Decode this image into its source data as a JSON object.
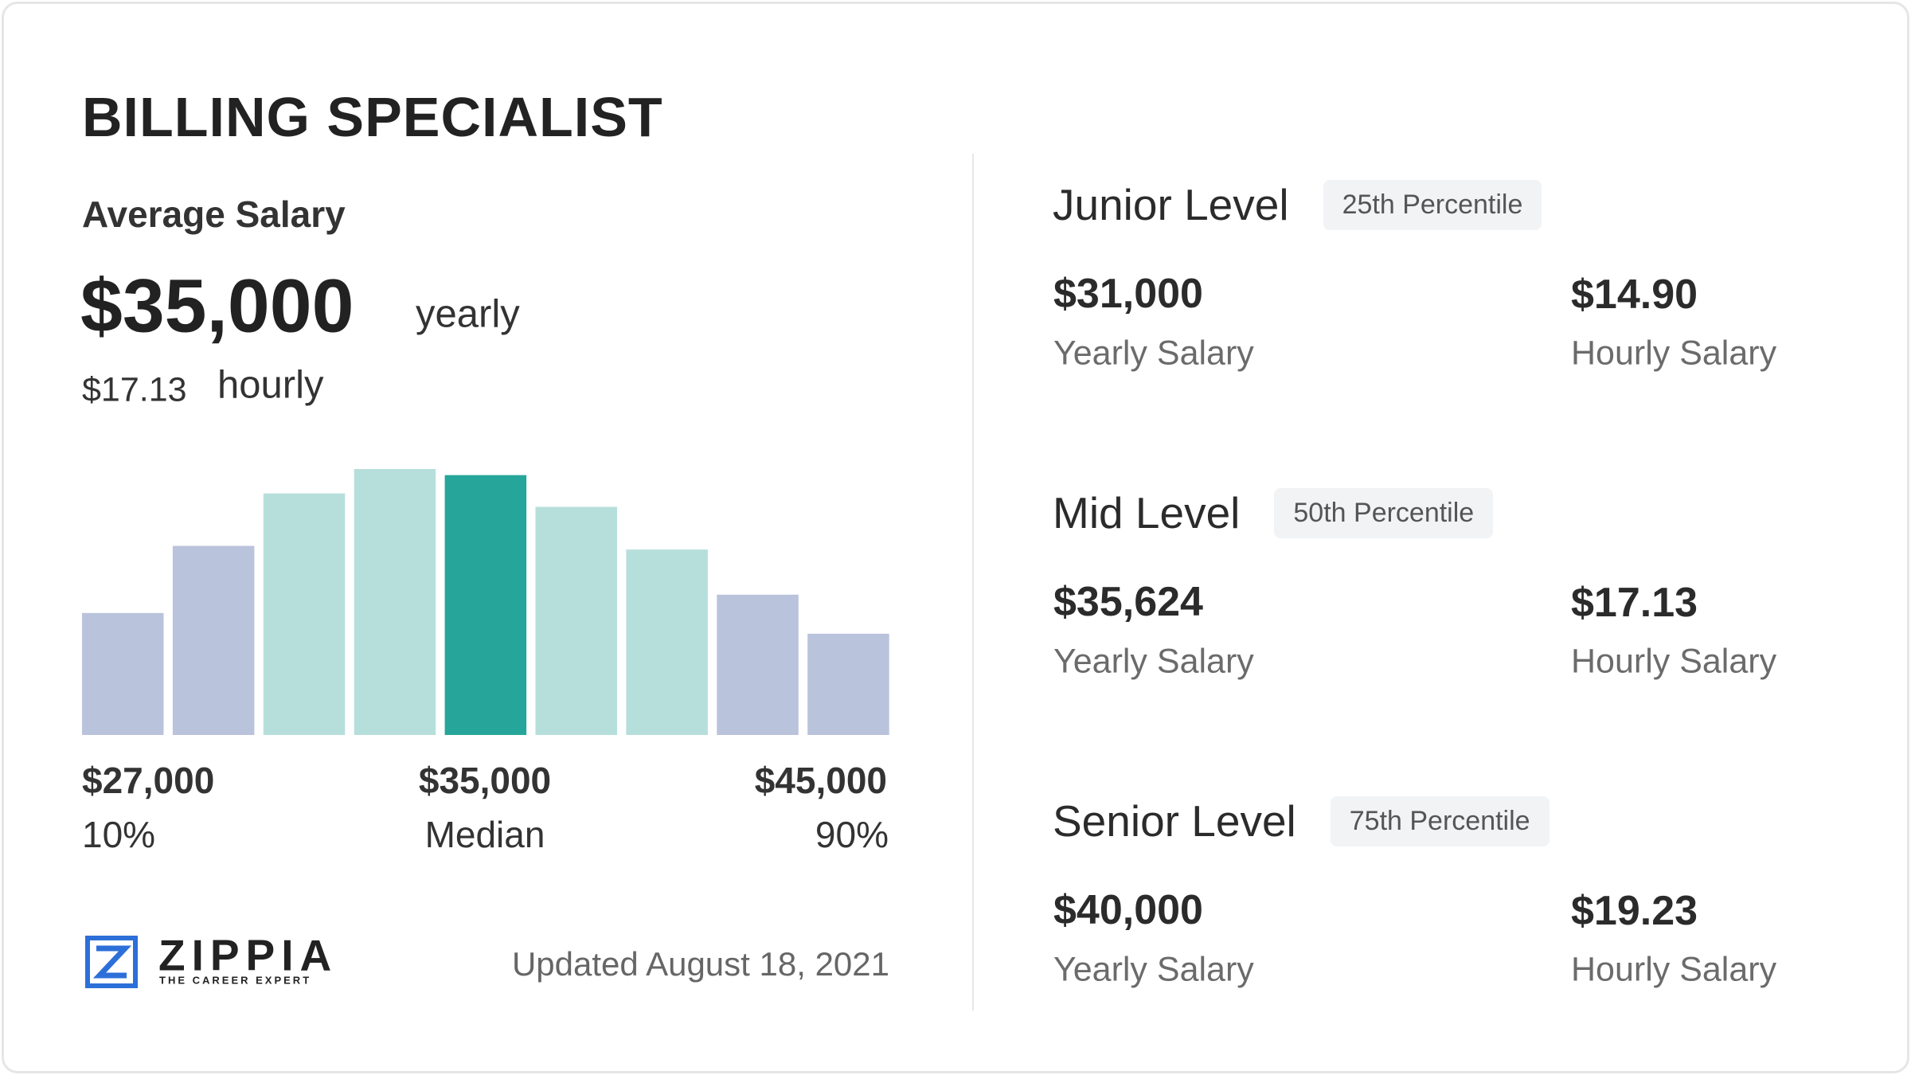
{
  "title": "BILLING SPECIALIST",
  "average": {
    "label": "Average Salary",
    "yearly": "$35,000",
    "yearly_unit": "yearly",
    "hourly": "$17.13",
    "hourly_unit": "hourly"
  },
  "chart_data": {
    "type": "bar",
    "values": [
      100,
      155,
      198,
      218,
      213,
      187,
      152,
      115,
      83
    ],
    "colors": [
      "#b9c3db",
      "#b9c3db",
      "#b6dfdb",
      "#b6dfdb",
      "#26a69a",
      "#b6dfdb",
      "#b6dfdb",
      "#b9c3db",
      "#b9c3db"
    ]
  },
  "range_labels": [
    {
      "amount": "$27,000",
      "label": "10%"
    },
    {
      "amount": "$35,000",
      "label": "Median"
    },
    {
      "amount": "$45,000",
      "label": "90%"
    }
  ],
  "footer": {
    "brand": "ZIPPIA",
    "tagline": "THE CAREER EXPERT",
    "updated": "Updated August 18, 2021"
  },
  "levels": [
    {
      "name": "Junior Level",
      "percentile": "25th Percentile",
      "yearly": "$31,000",
      "yearly_label": "Yearly Salary",
      "hourly": "$14.90",
      "hourly_label": "Hourly Salary"
    },
    {
      "name": "Mid Level",
      "percentile": "50th Percentile",
      "yearly": "$35,624",
      "yearly_label": "Yearly Salary",
      "hourly": "$17.13",
      "hourly_label": "Hourly Salary"
    },
    {
      "name": "Senior Level",
      "percentile": "75th Percentile",
      "yearly": "$40,000",
      "yearly_label": "Yearly Salary",
      "hourly": "$19.23",
      "hourly_label": "Hourly Salary"
    }
  ]
}
